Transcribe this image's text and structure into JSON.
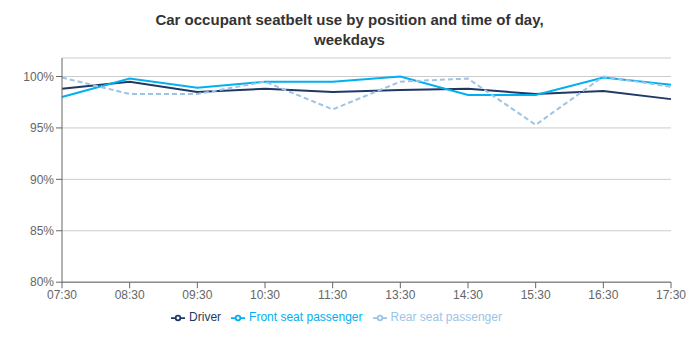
{
  "chart_data": {
    "type": "line",
    "title": "Car occupant seatbelt use by position and time of day,\nweekdays",
    "categories": [
      "07:30",
      "08:30",
      "09:30",
      "10:30",
      "11:30",
      "13:30",
      "14:30",
      "15:30",
      "16:30",
      "17:30"
    ],
    "series": [
      {
        "name": "Driver",
        "color": "#1f3864",
        "values": [
          98.8,
          99.5,
          98.5,
          98.8,
          98.5,
          98.7,
          98.8,
          98.3,
          98.6,
          97.8
        ]
      },
      {
        "name": "Front seat passenger",
        "color": "#00b0f0",
        "values": [
          98.0,
          99.8,
          98.9,
          99.5,
          99.5,
          100.0,
          98.2,
          98.2,
          99.9,
          99.2
        ]
      },
      {
        "name": "Rear seat passenger",
        "color": "#9dc3e6",
        "line_style": "dashed",
        "values": [
          99.9,
          98.3,
          98.3,
          99.5,
          96.8,
          99.5,
          99.8,
          95.3,
          100.0,
          99.0
        ]
      }
    ],
    "ylim": [
      80,
      101.8
    ],
    "yticks": [
      {
        "value": 80,
        "label": "80%"
      },
      {
        "value": 85,
        "label": "85%"
      },
      {
        "value": 90,
        "label": "90%"
      },
      {
        "value": 95,
        "label": "95%"
      },
      {
        "value": 100,
        "label": "100%"
      }
    ],
    "grid": true,
    "legend": "bottom"
  }
}
